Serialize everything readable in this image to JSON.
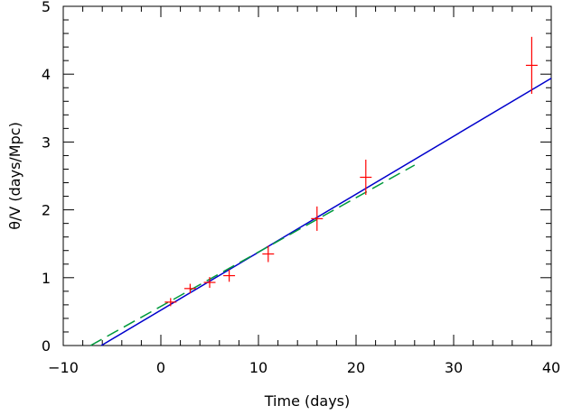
{
  "chart_data": {
    "type": "scatter",
    "xlabel": "Time (days)",
    "ylabel": "θ/V (days/Mpc)",
    "xlim": [
      -10,
      40
    ],
    "ylim": [
      0,
      5
    ],
    "x_ticks": [
      -10,
      0,
      10,
      20,
      30,
      40
    ],
    "x_tick_labels": [
      "−10",
      "0",
      "10",
      "20",
      "30",
      "40"
    ],
    "y_ticks": [
      0,
      1,
      2,
      3,
      4,
      5
    ],
    "y_tick_labels": [
      "0",
      "1",
      "2",
      "3",
      "4",
      "5"
    ],
    "grid": false,
    "series": [
      {
        "kind": "points-with-error-bars",
        "color": "#ff0000",
        "points": [
          {
            "x": 1,
            "y": 0.64,
            "yerr": 0.06,
            "xerr": 0.6
          },
          {
            "x": 3,
            "y": 0.84,
            "yerr": 0.07,
            "xerr": 0.6
          },
          {
            "x": 5,
            "y": 0.93,
            "yerr": 0.08,
            "xerr": 0.6
          },
          {
            "x": 7,
            "y": 1.03,
            "yerr": 0.09,
            "xerr": 0.6
          },
          {
            "x": 11,
            "y": 1.35,
            "yerr": 0.12,
            "xerr": 0.6
          },
          {
            "x": 16,
            "y": 1.87,
            "yerr": 0.18,
            "xerr": 0.6
          },
          {
            "x": 21,
            "y": 2.48,
            "yerr": 0.26,
            "xerr": 0.6
          },
          {
            "x": 38,
            "y": 4.13,
            "yerr": 0.42,
            "xerr": 0.6
          }
        ]
      },
      {
        "kind": "solid-line",
        "color": "#0000cc",
        "x": [
          -6.1,
          40
        ],
        "y": [
          0,
          3.94
        ]
      },
      {
        "kind": "dashed-line",
        "color": "#009a3c",
        "x": [
          -7.2,
          26
        ],
        "y": [
          0,
          2.66
        ]
      }
    ]
  }
}
